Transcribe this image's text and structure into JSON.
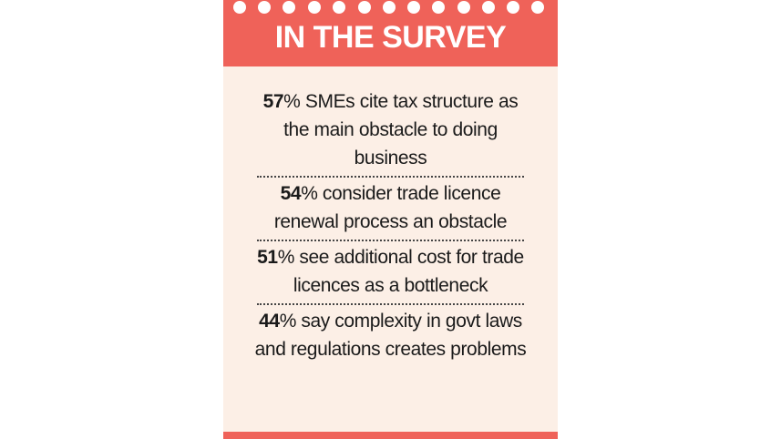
{
  "header": {
    "title": "IN THE SURVEY"
  },
  "items": [
    {
      "value": 57,
      "text": "% SMEs cite tax structure as the main obstacle to doing business"
    },
    {
      "value": 54,
      "text": "% consider trade licence renewal process an obstacle"
    },
    {
      "value": 51,
      "text": "% see additional cost for trade licences as a bottleneck"
    },
    {
      "value": 44,
      "text": "% say complexity in govt laws and regulations creates problems"
    }
  ]
}
